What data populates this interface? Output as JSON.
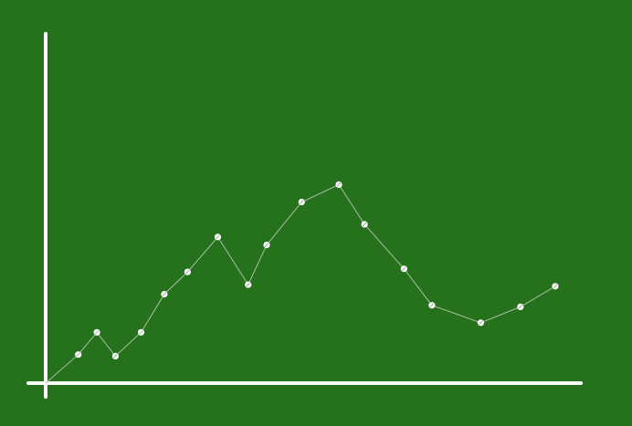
{
  "chart_data": {
    "type": "line",
    "title": "",
    "xlabel": "",
    "ylabel": "",
    "grid": false,
    "xlim": [
      0,
      23
    ],
    "ylim": [
      0,
      11
    ],
    "series": [
      {
        "points": [
          {
            "x": 1.4,
            "y": 0.9
          },
          {
            "x": 2.2,
            "y": 1.6
          },
          {
            "x": 3.0,
            "y": 0.85
          },
          {
            "x": 4.1,
            "y": 1.6
          },
          {
            "x": 5.1,
            "y": 2.8
          },
          {
            "x": 6.1,
            "y": 3.5
          },
          {
            "x": 7.4,
            "y": 4.6
          },
          {
            "x": 8.7,
            "y": 3.1
          },
          {
            "x": 9.5,
            "y": 4.35
          },
          {
            "x": 11.0,
            "y": 5.7
          },
          {
            "x": 12.6,
            "y": 6.25
          },
          {
            "x": 13.7,
            "y": 5.0
          },
          {
            "x": 15.4,
            "y": 3.6
          },
          {
            "x": 16.6,
            "y": 2.45
          },
          {
            "x": 18.7,
            "y": 1.9
          },
          {
            "x": 20.4,
            "y": 2.4
          },
          {
            "x": 21.9,
            "y": 3.05
          }
        ]
      }
    ]
  },
  "colors": {
    "background": "#26711b",
    "axis": "#ffffff",
    "line": "#a8bfa2",
    "marker": "#ffffff",
    "marker_hatch": "#9aa897"
  }
}
